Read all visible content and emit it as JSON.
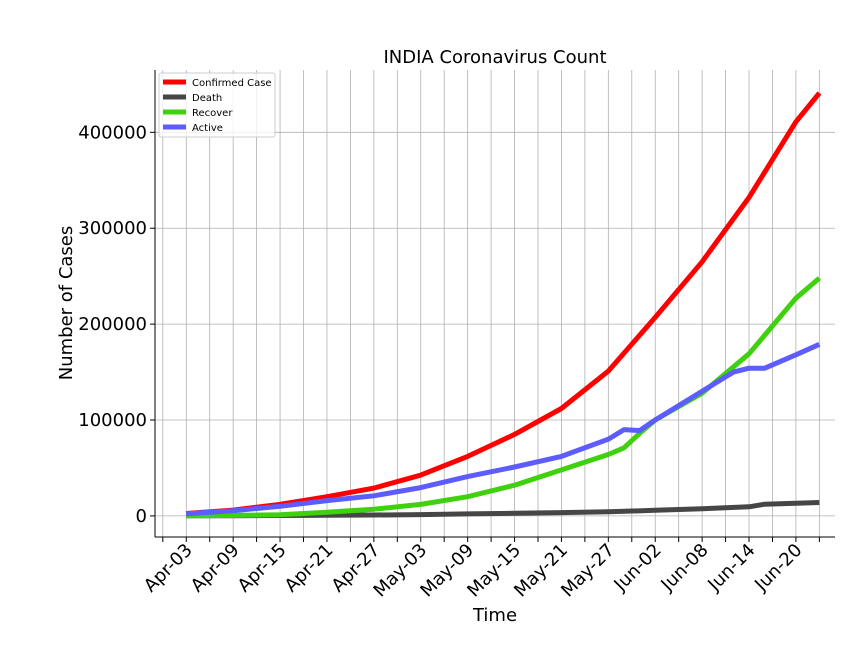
{
  "chart_data": {
    "type": "line",
    "title": "INDIA Coronavirus Count",
    "xlabel": "Time",
    "ylabel": "Number of Cases",
    "x_ticks": [
      "Apr-03",
      "Apr-09",
      "Apr-15",
      "Apr-21",
      "Apr-27",
      "May-03",
      "May-09",
      "May-15",
      "May-21",
      "May-27",
      "Jun-02",
      "Jun-08",
      "Jun-14",
      "Jun-20"
    ],
    "y_ticks": [
      0,
      100000,
      200000,
      300000,
      400000
    ],
    "y_tick_labels": [
      "0",
      "100000",
      "200000",
      "300000",
      "400000"
    ],
    "xlim": [
      "2020-03-30",
      "2020-06-25"
    ],
    "ylim": [
      -22000,
      465000
    ],
    "grid": true,
    "legend": "top-left",
    "series": [
      {
        "name": "Confirmed Case",
        "color": "#ff0000",
        "points": [
          [
            "2020-04-03",
            2500
          ],
          [
            "2020-04-09",
            6000
          ],
          [
            "2020-04-15",
            12000
          ],
          [
            "2020-04-21",
            20000
          ],
          [
            "2020-04-27",
            29000
          ],
          [
            "2020-05-03",
            42500
          ],
          [
            "2020-05-09",
            62000
          ],
          [
            "2020-05-15",
            85000
          ],
          [
            "2020-05-21",
            112000
          ],
          [
            "2020-05-27",
            151000
          ],
          [
            "2020-06-02",
            207000
          ],
          [
            "2020-06-08",
            265000
          ],
          [
            "2020-06-14",
            332000
          ],
          [
            "2020-06-20",
            411000
          ],
          [
            "2020-06-23",
            441000
          ]
        ]
      },
      {
        "name": "Death",
        "color": "#464646",
        "points": [
          [
            "2020-04-03",
            70
          ],
          [
            "2020-04-09",
            180
          ],
          [
            "2020-04-15",
            390
          ],
          [
            "2020-04-21",
            640
          ],
          [
            "2020-04-27",
            940
          ],
          [
            "2020-05-03",
            1390
          ],
          [
            "2020-05-09",
            2060
          ],
          [
            "2020-05-15",
            2750
          ],
          [
            "2020-05-21",
            3440
          ],
          [
            "2020-05-27",
            4330
          ],
          [
            "2020-06-02",
            5800
          ],
          [
            "2020-06-08",
            7470
          ],
          [
            "2020-06-14",
            9520
          ],
          [
            "2020-06-16",
            12200
          ],
          [
            "2020-06-20",
            13250
          ],
          [
            "2020-06-23",
            14010
          ]
        ]
      },
      {
        "name": "Recover",
        "color": "#3fd10d",
        "points": [
          [
            "2020-04-03",
            190
          ],
          [
            "2020-04-09",
            500
          ],
          [
            "2020-04-15",
            1300
          ],
          [
            "2020-04-21",
            3900
          ],
          [
            "2020-04-27",
            7000
          ],
          [
            "2020-05-03",
            12000
          ],
          [
            "2020-05-09",
            20000
          ],
          [
            "2020-05-15",
            32000
          ],
          [
            "2020-05-21",
            48000
          ],
          [
            "2020-05-27",
            64000
          ],
          [
            "2020-05-29",
            71000
          ],
          [
            "2020-05-31",
            86000
          ],
          [
            "2020-06-02",
            100000
          ],
          [
            "2020-06-08",
            128000
          ],
          [
            "2020-06-14",
            169000
          ],
          [
            "2020-06-20",
            227000
          ],
          [
            "2020-06-23",
            248000
          ]
        ]
      },
      {
        "name": "Active",
        "color": "#5c5cff",
        "points": [
          [
            "2020-04-03",
            2300
          ],
          [
            "2020-04-09",
            5400
          ],
          [
            "2020-04-15",
            10000
          ],
          [
            "2020-04-21",
            16000
          ],
          [
            "2020-04-27",
            21000
          ],
          [
            "2020-05-03",
            29500
          ],
          [
            "2020-05-09",
            41000
          ],
          [
            "2020-05-15",
            51000
          ],
          [
            "2020-05-21",
            62000
          ],
          [
            "2020-05-27",
            80000
          ],
          [
            "2020-05-29",
            90000
          ],
          [
            "2020-05-31",
            89000
          ],
          [
            "2020-06-02",
            100000
          ],
          [
            "2020-06-08",
            130000
          ],
          [
            "2020-06-12",
            150000
          ],
          [
            "2020-06-14",
            154000
          ],
          [
            "2020-06-16",
            154000
          ],
          [
            "2020-06-20",
            168000
          ],
          [
            "2020-06-23",
            179000
          ]
        ]
      }
    ]
  }
}
